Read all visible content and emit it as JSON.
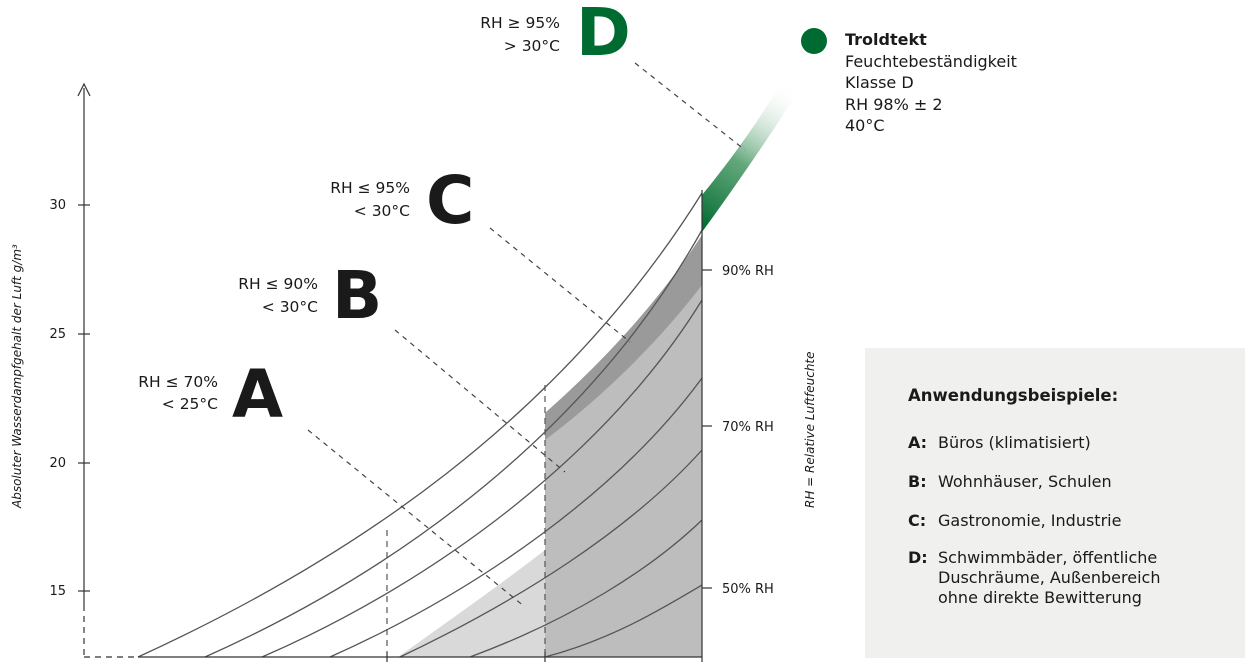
{
  "colors": {
    "green": "#006b30",
    "dark_text": "#1a1a1a",
    "line": "#555555",
    "fill_light": "#d9d9d9",
    "fill_mid": "#bdbdbd",
    "fill_dark": "#9a9a9a",
    "box": "#f0f0ee"
  },
  "chart": {
    "y_axis_title": "Absoluter Wasserdampfgehalt der Luft  g/m³",
    "rh_axis_title": "RH = Relative Luftfeuchte",
    "y_ticks": [
      "30",
      "25",
      "20",
      "15"
    ],
    "rh_ticks": [
      "90% RH",
      "70% RH",
      "50% RH"
    ]
  },
  "classes": {
    "A": {
      "letter": "A",
      "rh": "RH ≤ 70%",
      "temp": "< 25°C"
    },
    "B": {
      "letter": "B",
      "rh": "RH ≤ 90%",
      "temp": "< 30°C"
    },
    "C": {
      "letter": "C",
      "rh": "RH ≤ 95%",
      "temp": "< 30°C"
    },
    "D": {
      "letter": "D",
      "rh": "RH ≥ 95%",
      "temp": "> 30°C"
    }
  },
  "legend": {
    "title": "Troldtekt",
    "line1": "Feuchtebeständigkeit",
    "line2": "Klasse D",
    "line3": "RH 98% ± 2",
    "line4": "40°C"
  },
  "examples": {
    "title": "Anwendungsbeispiele:",
    "items": [
      {
        "key": "A:",
        "text": "Büros (klimatisiert)"
      },
      {
        "key": "B:",
        "text": "Wohnhäuser, Schulen"
      },
      {
        "key": "C:",
        "text": "Gastronomie, Industrie"
      },
      {
        "key": "D:",
        "text": "Schwimmbäder, öffentliche Duschräume, Außenbereich ohne direkte Bewitterung"
      }
    ]
  }
}
